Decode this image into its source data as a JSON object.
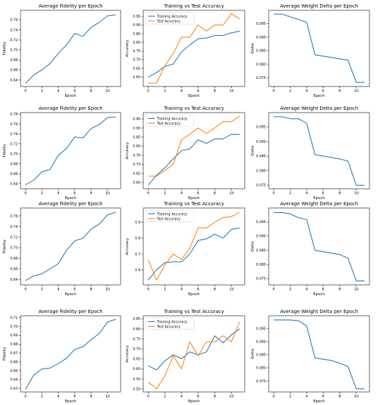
{
  "colors": {
    "train": "#1f77b4",
    "test": "#ff7f0e",
    "axis": "#000000",
    "background": "#ffffff"
  },
  "chart_data": [
    {
      "type": "line",
      "title": "Average Fidelity per Epoch",
      "xlabel": "Epoch",
      "ylabel": "Fidelity",
      "xlim": [
        -0.6,
        11.6
      ],
      "ylim": [
        0.627,
        0.779
      ],
      "xticks": [
        0,
        2,
        4,
        6,
        8,
        10
      ],
      "yticks": [
        0.64,
        0.66,
        0.68,
        0.7,
        0.72,
        0.74,
        0.76
      ],
      "x": [
        0,
        1,
        2,
        3,
        4,
        5,
        6,
        7,
        8,
        9,
        10,
        11
      ],
      "series": [
        {
          "color": "#1f77b4",
          "values": [
            0.633,
            0.65,
            0.66,
            0.673,
            0.693,
            0.71,
            0.733,
            0.727,
            0.745,
            0.755,
            0.768,
            0.77
          ]
        }
      ]
    },
    {
      "type": "line",
      "title": "Training vs Test Accuracy",
      "xlabel": "Epoch",
      "ylabel": "Accuracy",
      "xlim": [
        -0.6,
        11.6
      ],
      "ylim": [
        0.545,
        0.985
      ],
      "xticks": [
        0,
        2,
        4,
        6,
        8,
        10
      ],
      "yticks": [
        0.6,
        0.65,
        0.7,
        0.75,
        0.8,
        0.85,
        0.9,
        0.95
      ],
      "x": [
        0,
        1,
        2,
        3,
        4,
        5,
        6,
        7,
        8,
        9,
        10,
        11
      ],
      "legend": "top-left",
      "series": [
        {
          "name": "Training Accuracy",
          "color": "#1f77b4",
          "values": [
            0.6,
            0.625,
            0.66,
            0.675,
            0.745,
            0.785,
            0.82,
            0.825,
            0.84,
            0.84,
            0.855,
            0.865
          ]
        },
        {
          "name": "Test Accuracy",
          "color": "#ff7f0e",
          "values": [
            0.565,
            0.565,
            0.665,
            0.735,
            0.83,
            0.83,
            0.9,
            0.865,
            0.9,
            0.9,
            0.965,
            0.935
          ]
        }
      ]
    },
    {
      "type": "line",
      "title": "Average Weight Delta per Epoch",
      "xlabel": "Epoch",
      "ylabel": "Delta",
      "xlim": [
        -0.6,
        11.6
      ],
      "ylim": [
        0.0718,
        0.0999
      ],
      "xticks": [
        0,
        2,
        4,
        6,
        8,
        10
      ],
      "yticks": [
        0.075,
        0.08,
        0.085,
        0.09,
        0.095
      ],
      "x": [
        0,
        1,
        2,
        3,
        4,
        5,
        6,
        7,
        8,
        9,
        10,
        11
      ],
      "series": [
        {
          "color": "#1f77b4",
          "values": [
            0.0985,
            0.0985,
            0.0975,
            0.0965,
            0.0955,
            0.0835,
            0.083,
            0.0825,
            0.082,
            0.0815,
            0.0733,
            0.0733
          ]
        }
      ]
    },
    {
      "type": "line",
      "title": "Average Fidelity per Epoch",
      "xlabel": "Epoch",
      "ylabel": "Fidelity",
      "xlim": [
        -0.6,
        11.6
      ],
      "ylim": [
        0.63,
        0.783
      ],
      "xticks": [
        0,
        2,
        4,
        6,
        8,
        10
      ],
      "yticks": [
        0.64,
        0.66,
        0.68,
        0.7,
        0.72,
        0.74,
        0.76,
        0.78
      ],
      "x": [
        0,
        1,
        2,
        3,
        4,
        5,
        6,
        7,
        8,
        9,
        10,
        11
      ],
      "series": [
        {
          "color": "#1f77b4",
          "values": [
            0.638,
            0.647,
            0.664,
            0.669,
            0.697,
            0.711,
            0.734,
            0.732,
            0.751,
            0.759,
            0.773,
            0.774
          ]
        }
      ]
    },
    {
      "type": "line",
      "title": "Training vs Test Accuracy",
      "xlabel": "Epoch",
      "ylabel": "Accuracy",
      "xlim": [
        -0.6,
        11.6
      ],
      "ylim": [
        0.565,
        0.985
      ],
      "xticks": [
        0,
        2,
        4,
        6,
        8,
        10
      ],
      "yticks": [
        0.6,
        0.65,
        0.7,
        0.75,
        0.8,
        0.85,
        0.9,
        0.95
      ],
      "x": [
        0,
        1,
        2,
        3,
        4,
        5,
        6,
        7,
        8,
        9,
        10,
        11
      ],
      "legend": "top-left",
      "series": [
        {
          "name": "Training Accuracy",
          "color": "#1f77b4",
          "values": [
            0.585,
            0.64,
            0.68,
            0.73,
            0.775,
            0.785,
            0.835,
            0.815,
            0.84,
            0.84,
            0.865,
            0.865
          ]
        },
        {
          "name": "Test Accuracy",
          "color": "#ff7f0e",
          "values": [
            0.635,
            0.635,
            0.665,
            0.7,
            0.835,
            0.865,
            0.9,
            0.87,
            0.9,
            0.935,
            0.935,
            0.965
          ]
        }
      ]
    },
    {
      "type": "line",
      "title": "Average Weight Delta per Epoch",
      "xlabel": "Epoch",
      "ylabel": "Delta",
      "xlim": [
        -0.6,
        11.6
      ],
      "ylim": [
        0.0738,
        0.0999
      ],
      "xticks": [
        0,
        2,
        4,
        6,
        8,
        10
      ],
      "yticks": [
        0.075,
        0.08,
        0.085,
        0.09,
        0.095
      ],
      "x": [
        0,
        1,
        2,
        3,
        4,
        5,
        6,
        7,
        8,
        9,
        10,
        11
      ],
      "series": [
        {
          "color": "#1f77b4",
          "values": [
            0.0985,
            0.0985,
            0.0978,
            0.0978,
            0.0962,
            0.0855,
            0.085,
            0.0845,
            0.084,
            0.0833,
            0.075,
            0.075
          ]
        }
      ]
    },
    {
      "type": "line",
      "title": "Average Fidelity per Epoch",
      "xlabel": "Epoch",
      "ylabel": "Fidelity",
      "xlim": [
        -0.6,
        11.6
      ],
      "ylim": [
        0.63,
        0.775
      ],
      "xticks": [
        0,
        2,
        4,
        6,
        8,
        10
      ],
      "yticks": [
        0.64,
        0.66,
        0.68,
        0.7,
        0.72,
        0.74,
        0.76
      ],
      "x": [
        0,
        1,
        2,
        3,
        4,
        5,
        6,
        7,
        8,
        9,
        10,
        11
      ],
      "series": [
        {
          "color": "#1f77b4",
          "values": [
            0.638,
            0.647,
            0.651,
            0.66,
            0.67,
            0.695,
            0.713,
            0.718,
            0.735,
            0.745,
            0.762,
            0.767
          ]
        }
      ]
    },
    {
      "type": "line",
      "title": "Training vs Test Accuracy",
      "xlabel": "Epoch",
      "ylabel": "Accuracy",
      "xlim": [
        -0.6,
        11.6
      ],
      "ylim": [
        0.505,
        0.99
      ],
      "xticks": [
        0,
        2,
        4,
        6,
        8,
        10
      ],
      "yticks": [
        0.6,
        0.7,
        0.8,
        0.9
      ],
      "x": [
        0,
        1,
        2,
        3,
        4,
        5,
        6,
        7,
        8,
        9,
        10,
        11
      ],
      "legend": "top-left",
      "series": [
        {
          "name": "Training Accuracy",
          "color": "#1f77b4",
          "values": [
            0.535,
            0.6,
            0.645,
            0.65,
            0.65,
            0.7,
            0.785,
            0.795,
            0.825,
            0.8,
            0.855,
            0.865
          ]
        },
        {
          "name": "Test Accuracy",
          "color": "#ff7f0e",
          "values": [
            0.665,
            0.535,
            0.63,
            0.7,
            0.665,
            0.735,
            0.865,
            0.865,
            0.9,
            0.93,
            0.935,
            0.965
          ]
        }
      ]
    },
    {
      "type": "line",
      "title": "Average Weight Delta per Epoch",
      "xlabel": "Epoch",
      "ylabel": "Delta",
      "xlim": [
        -0.6,
        11.6
      ],
      "ylim": [
        0.0728,
        0.0999
      ],
      "xticks": [
        0,
        2,
        4,
        6,
        8,
        10
      ],
      "yticks": [
        0.075,
        0.08,
        0.085,
        0.09,
        0.095
      ],
      "x": [
        0,
        1,
        2,
        3,
        4,
        5,
        6,
        7,
        8,
        9,
        10,
        11
      ],
      "series": [
        {
          "color": "#1f77b4",
          "values": [
            0.0983,
            0.0983,
            0.0978,
            0.0965,
            0.0958,
            0.085,
            0.0845,
            0.084,
            0.0835,
            0.0822,
            0.0742,
            0.0742
          ]
        }
      ]
    },
    {
      "type": "line",
      "title": "Average Fidelity per Epoch",
      "xlabel": "Epoch",
      "ylabel": "Fidelity",
      "xlim": [
        -0.6,
        11.6
      ],
      "ylim": [
        0.626,
        0.712
      ],
      "xticks": [
        0,
        2,
        4,
        6,
        8,
        10
      ],
      "yticks": [
        0.63,
        0.64,
        0.65,
        0.66,
        0.67,
        0.68,
        0.69,
        0.7,
        0.71
      ],
      "x": [
        0,
        1,
        2,
        3,
        4,
        5,
        6,
        7,
        8,
        9,
        10,
        11
      ],
      "series": [
        {
          "color": "#1f77b4",
          "values": [
            0.629,
            0.645,
            0.652,
            0.653,
            0.658,
            0.664,
            0.674,
            0.677,
            0.685,
            0.692,
            0.705,
            0.708
          ]
        }
      ]
    },
    {
      "type": "line",
      "title": "Training vs Test Accuracy",
      "xlabel": "Epoch",
      "ylabel": "Accuracy",
      "xlim": [
        -0.6,
        11.6
      ],
      "ylim": [
        0.485,
        0.865
      ],
      "xticks": [
        0,
        2,
        4,
        6,
        8,
        10
      ],
      "yticks": [
        0.5,
        0.55,
        0.6,
        0.65,
        0.7,
        0.75,
        0.8,
        0.85
      ],
      "x": [
        0,
        1,
        2,
        3,
        4,
        5,
        6,
        7,
        8,
        9,
        10,
        11
      ],
      "legend": "top-left",
      "series": [
        {
          "name": "Training Accuracy",
          "color": "#1f77b4",
          "values": [
            0.615,
            0.595,
            0.64,
            0.67,
            0.65,
            0.685,
            0.67,
            0.685,
            0.765,
            0.73,
            0.77,
            0.8
          ]
        },
        {
          "name": "Test Accuracy",
          "color": "#ff7f0e",
          "values": [
            0.535,
            0.5,
            0.565,
            0.665,
            0.6,
            0.735,
            0.665,
            0.735,
            0.735,
            0.765,
            0.735,
            0.835
          ]
        }
      ]
    },
    {
      "type": "line",
      "title": "Average Weight Delta per Epoch",
      "xlabel": "Epoch",
      "ylabel": "Delta",
      "xlim": [
        -0.6,
        11.6
      ],
      "ylim": [
        0.0708,
        0.0999
      ],
      "xticks": [
        0,
        2,
        4,
        6,
        8,
        10
      ],
      "yticks": [
        0.075,
        0.08,
        0.085,
        0.09,
        0.095
      ],
      "x": [
        0,
        1,
        2,
        3,
        4,
        5,
        6,
        7,
        8,
        9,
        10,
        11
      ],
      "series": [
        {
          "color": "#1f77b4",
          "values": [
            0.0983,
            0.0983,
            0.0983,
            0.098,
            0.096,
            0.0838,
            0.0833,
            0.0828,
            0.0818,
            0.0805,
            0.072,
            0.072
          ]
        }
      ]
    }
  ]
}
